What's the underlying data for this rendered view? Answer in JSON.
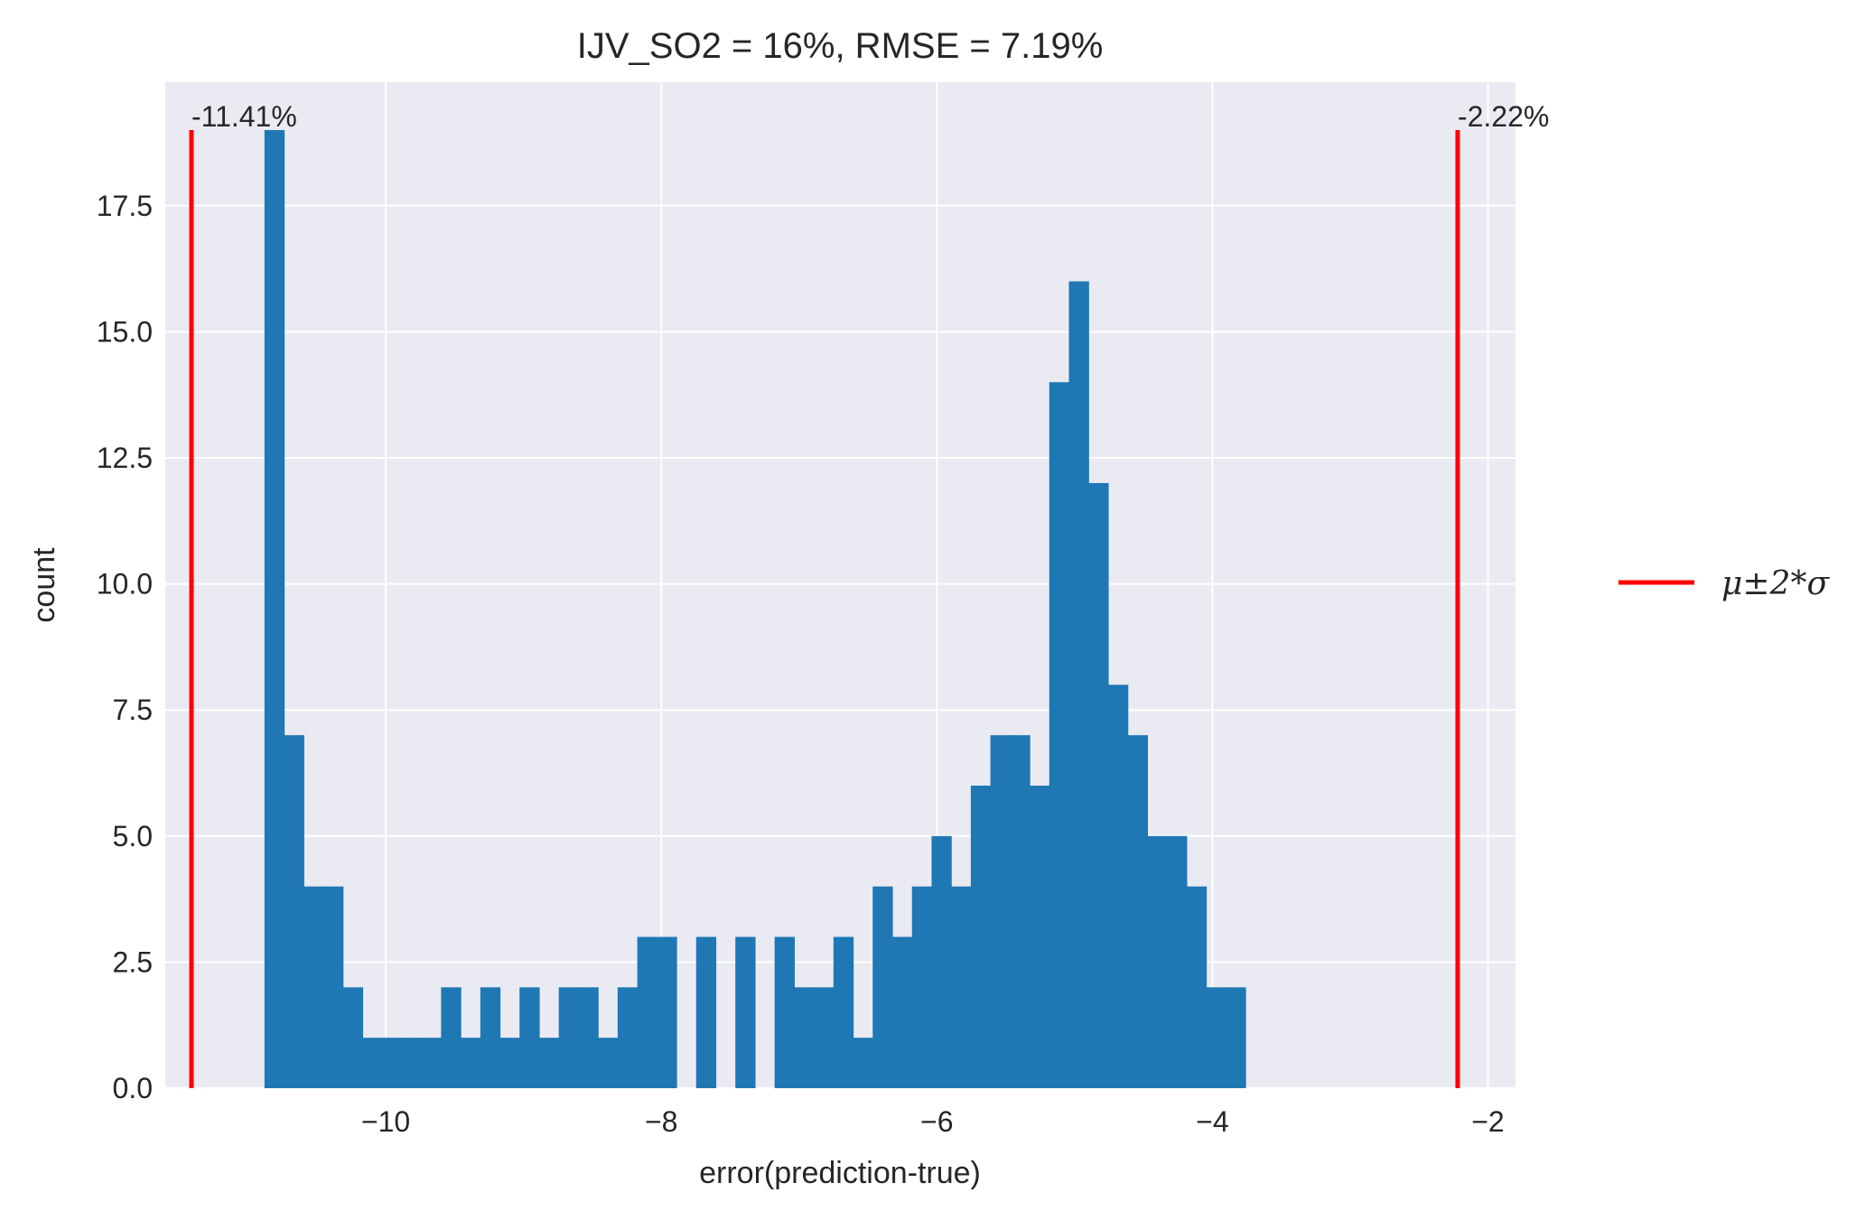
{
  "chart_data": {
    "type": "bar",
    "title": "IJV_SO2 = 16%, RMSE = 7.19%",
    "xlabel": "error(prediction-true)",
    "ylabel": "count",
    "xlim": [
      -11.6,
      -1.8
    ],
    "ylim": [
      0,
      19.95
    ],
    "x_ticks": [
      -10,
      -8,
      -6,
      -4,
      -2
    ],
    "x_tick_labels": [
      "−10",
      "−8",
      "−6",
      "−4",
      "−2"
    ],
    "y_ticks": [
      0,
      2.5,
      5,
      7.5,
      10,
      12.5,
      15,
      17.5
    ],
    "y_tick_labels": [
      "0.0",
      "2.5",
      "5.0",
      "7.5",
      "10.0",
      "12.5",
      "15.0",
      "17.5"
    ],
    "grid": true,
    "bin_start": -10.88,
    "bin_width": 0.1424,
    "counts": [
      19,
      7,
      4,
      4,
      2,
      1,
      1,
      1,
      1,
      2,
      1,
      2,
      1,
      2,
      1,
      2,
      2,
      1,
      2,
      3,
      3,
      0,
      3,
      0,
      3,
      0,
      3,
      2,
      2,
      3,
      1,
      4,
      3,
      4,
      5,
      4,
      6,
      7,
      7,
      6,
      14,
      16,
      12,
      8,
      7,
      5,
      5,
      4,
      2,
      2
    ],
    "reference_lines": [
      {
        "x": -11.41,
        "label": "-11.41%",
        "y_top": 19
      },
      {
        "x": -2.22,
        "label": "-2.22%",
        "y_top": 19
      }
    ],
    "bar_color": "#1f77b4",
    "line_color": "#ff0000",
    "background_color": "#eaeaf2",
    "legend": {
      "position": "right",
      "entries": [
        "μ±2*σ"
      ]
    }
  }
}
